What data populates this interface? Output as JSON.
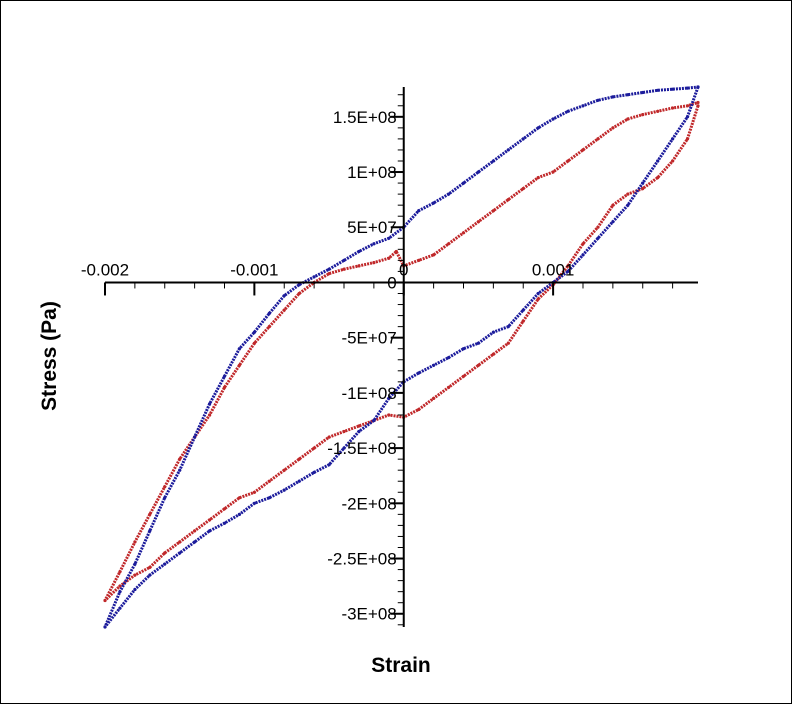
{
  "chart_data": {
    "type": "line",
    "xlabel": "Strain",
    "ylabel": "Stress (Pa)",
    "xlim": [
      -0.002,
      0.00197
    ],
    "ylim": [
      -312000000.0,
      177000000.0
    ],
    "x_ticks": [
      {
        "value": -0.002,
        "label": "-0.002"
      },
      {
        "value": -0.001,
        "label": "-0.001"
      },
      {
        "value": 0,
        "label": "0"
      },
      {
        "value": 0.001,
        "label": "0.001"
      }
    ],
    "y_ticks": [
      {
        "value": 150000000,
        "label": "1.5E+08"
      },
      {
        "value": 100000000,
        "label": "1E+08"
      },
      {
        "value": 50000000,
        "label": "5E+07"
      },
      {
        "value": 0,
        "label": "0"
      },
      {
        "value": -50000000,
        "label": "-5E+07"
      },
      {
        "value": -100000000,
        "label": "-1E+08"
      },
      {
        "value": -150000000,
        "label": "-1.5E+08"
      },
      {
        "value": -200000000,
        "label": "-2E+08"
      },
      {
        "value": -250000000,
        "label": "-2.5E+08"
      },
      {
        "value": -300000000,
        "label": "-3E+08"
      }
    ],
    "grid": false,
    "legend": "none",
    "series": [
      {
        "color": "#c0282a",
        "x": [
          0.00197,
          0.0019,
          0.0018,
          0.0017,
          0.0016,
          0.0015,
          0.0014,
          0.0013,
          0.0012,
          0.0011,
          0.001,
          0.0009,
          0.0008,
          0.0007,
          0.0006,
          0.0005,
          0.0004,
          0.0003,
          0.0002,
          0.0001,
          0.0,
          -0.0001,
          -0.0002,
          -0.0003,
          -0.0004,
          -0.0005,
          -0.0006,
          -0.0007,
          -0.0008,
          -0.0009,
          -0.001,
          -0.0011,
          -0.0012,
          -0.0013,
          -0.0014,
          -0.0015,
          -0.0016,
          -0.0017,
          -0.0018,
          -0.0019,
          -0.002,
          -0.0019,
          -0.0018,
          -0.0017,
          -0.0016,
          -0.0015,
          -0.0014,
          -0.0013,
          -0.0012,
          -0.0011,
          -0.001,
          -0.0009,
          -0.0008,
          -0.0007,
          -0.0006,
          -0.0005,
          -0.0004,
          -0.0003,
          -0.0002,
          -0.0001,
          -5e-05,
          0.0,
          0.0001,
          0.0002,
          0.0003,
          0.0004,
          0.0005,
          0.0006,
          0.0007,
          0.0008,
          0.0009,
          0.001,
          0.0011,
          0.0012,
          0.0013,
          0.0014,
          0.0015,
          0.0016,
          0.0017,
          0.0018,
          0.0019,
          0.00197
        ],
        "y": [
          160000000,
          130000000,
          110000000,
          95000000,
          85000000,
          80000000,
          70000000,
          50000000,
          35000000,
          15000000,
          -2000000,
          -15000000,
          -35000000,
          -55000000,
          -65000000,
          -75000000,
          -85000000,
          -95000000,
          -105000000,
          -115000000,
          -122000000,
          -120000000,
          -125000000,
          -130000000,
          -135000000,
          -140000000,
          -150000000,
          -160000000,
          -170000000,
          -180000000,
          -190000000,
          -195000000,
          -205000000,
          -215000000,
          -225000000,
          -235000000,
          -245000000,
          -258000000,
          -265000000,
          -275000000,
          -288000000,
          -262000000,
          -235000000,
          -210000000,
          -185000000,
          -160000000,
          -140000000,
          -120000000,
          -95000000,
          -75000000,
          -55000000,
          -40000000,
          -25000000,
          -10000000,
          0,
          8000000,
          12000000,
          15000000,
          18000000,
          22000000,
          28000000,
          15000000,
          20000000,
          25000000,
          35000000,
          45000000,
          55000000,
          65000000,
          75000000,
          85000000,
          95000000,
          100000000,
          110000000,
          120000000,
          130000000,
          140000000,
          148000000,
          152000000,
          155000000,
          158000000,
          160000000,
          163000000
        ]
      },
      {
        "color": "#1c1c9c",
        "x": [
          0.00197,
          0.0019,
          0.0018,
          0.0017,
          0.0016,
          0.0015,
          0.0014,
          0.0013,
          0.0012,
          0.0011,
          0.001,
          0.0009,
          0.0008,
          0.0007,
          0.0006,
          0.0005,
          0.0004,
          0.0003,
          0.0002,
          0.0001,
          0.0,
          -0.0001,
          -0.0002,
          -0.0003,
          -0.0004,
          -0.0005,
          -0.0006,
          -0.0007,
          -0.0008,
          -0.0009,
          -0.001,
          -0.0011,
          -0.0012,
          -0.0013,
          -0.0014,
          -0.0015,
          -0.0016,
          -0.0017,
          -0.0018,
          -0.0019,
          -0.002,
          -0.0019,
          -0.0018,
          -0.0017,
          -0.0016,
          -0.0015,
          -0.0014,
          -0.0013,
          -0.0012,
          -0.0011,
          -0.001,
          -0.0009,
          -0.0008,
          -0.0007,
          -0.0006,
          -0.0005,
          -0.0004,
          -0.0003,
          -0.0002,
          -0.0001,
          0.0,
          0.0001,
          0.0002,
          0.0003,
          0.0004,
          0.0005,
          0.0006,
          0.0007,
          0.0008,
          0.0009,
          0.001,
          0.0011,
          0.0012,
          0.0013,
          0.0014,
          0.0015,
          0.0016,
          0.0017,
          0.0018,
          0.0019,
          0.00197
        ],
        "y": [
          177000000,
          150000000,
          130000000,
          110000000,
          90000000,
          70000000,
          55000000,
          40000000,
          25000000,
          10000000,
          0,
          -10000000,
          -25000000,
          -40000000,
          -45000000,
          -55000000,
          -60000000,
          -68000000,
          -75000000,
          -82000000,
          -90000000,
          -105000000,
          -125000000,
          -135000000,
          -150000000,
          -165000000,
          -172000000,
          -180000000,
          -188000000,
          -195000000,
          -200000000,
          -210000000,
          -218000000,
          -225000000,
          -235000000,
          -245000000,
          -255000000,
          -265000000,
          -278000000,
          -295000000,
          -312000000,
          -280000000,
          -255000000,
          -225000000,
          -195000000,
          -170000000,
          -140000000,
          -110000000,
          -85000000,
          -60000000,
          -45000000,
          -28000000,
          -12000000,
          -2000000,
          5000000,
          12000000,
          20000000,
          28000000,
          35000000,
          40000000,
          50000000,
          65000000,
          72000000,
          80000000,
          90000000,
          100000000,
          110000000,
          120000000,
          130000000,
          140000000,
          148000000,
          155000000,
          160000000,
          165000000,
          168000000,
          170000000,
          172000000,
          174000000,
          175000000,
          176000000,
          177000000
        ]
      }
    ]
  }
}
